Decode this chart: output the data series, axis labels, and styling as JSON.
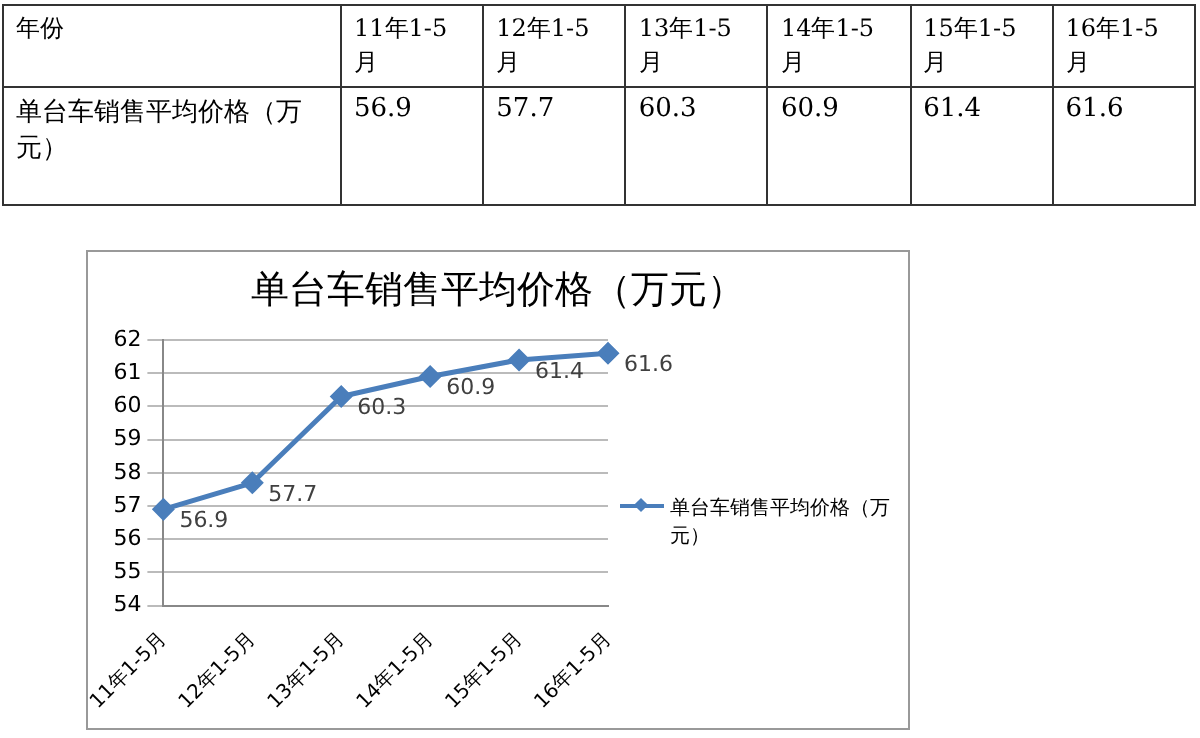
{
  "chart_data": [
    {
      "type": "other",
      "xlabel": "年份",
      "categories": [
        "11年1-5月",
        "12年1-5月",
        "13年1-5月",
        "14年1-5月",
        "15年1-5月",
        "16年1-5月"
      ],
      "series": [
        {
          "name": "单台车销售平均价格（万元）",
          "values": [
            56.9,
            57.7,
            60.3,
            60.9,
            61.4,
            61.6
          ]
        }
      ],
      "data_labels": true
    },
    {
      "type": "line",
      "title": "单台车销售平均价格（万元）",
      "categories": [
        "11年1-5月",
        "12年1-5月",
        "13年1-5月",
        "14年1-5月",
        "15年1-5月",
        "16年1-5月"
      ],
      "series": [
        {
          "name": "单台车销售平均价格（万元）",
          "color": "#4a7ebb",
          "values": [
            56.9,
            57.7,
            60.3,
            60.9,
            61.4,
            61.6
          ]
        }
      ],
      "ylim": [
        54,
        62
      ],
      "yticks": [
        54,
        55,
        56,
        57,
        58,
        59,
        60,
        61,
        62
      ],
      "grid": "y",
      "legend": "right",
      "marker": "diamond",
      "line_style": "solid",
      "data_labels": true
    }
  ]
}
